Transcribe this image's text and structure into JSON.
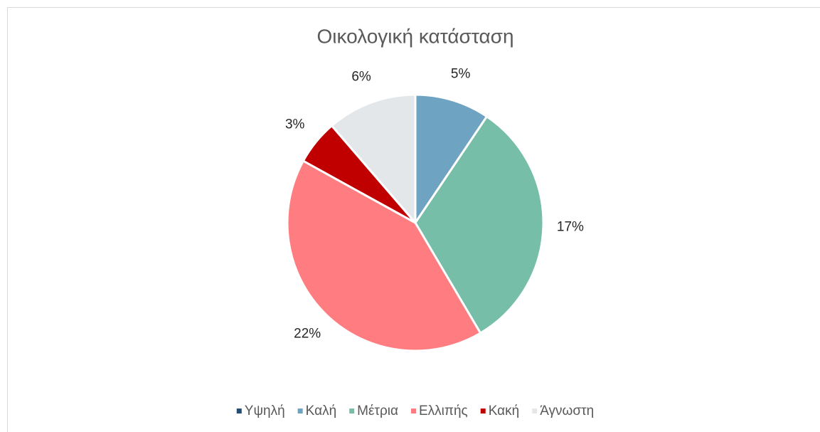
{
  "chart_data": {
    "type": "pie",
    "title": "Οικολογική κατάσταση",
    "categories": [
      "Υψηλή",
      "Καλή",
      "Μέτρια",
      "Ελλιπής",
      "Κακή",
      "Άγνωστη"
    ],
    "values": [
      0,
      5,
      17,
      22,
      3,
      6
    ],
    "value_labels": [
      null,
      "5%",
      "17%",
      "22%",
      "3%",
      "6%"
    ],
    "colors": [
      "#1f4e79",
      "#6fa3c2",
      "#76bea8",
      "#ff7c80",
      "#c00000",
      "#e4e7ea"
    ],
    "legend": "bottom"
  }
}
